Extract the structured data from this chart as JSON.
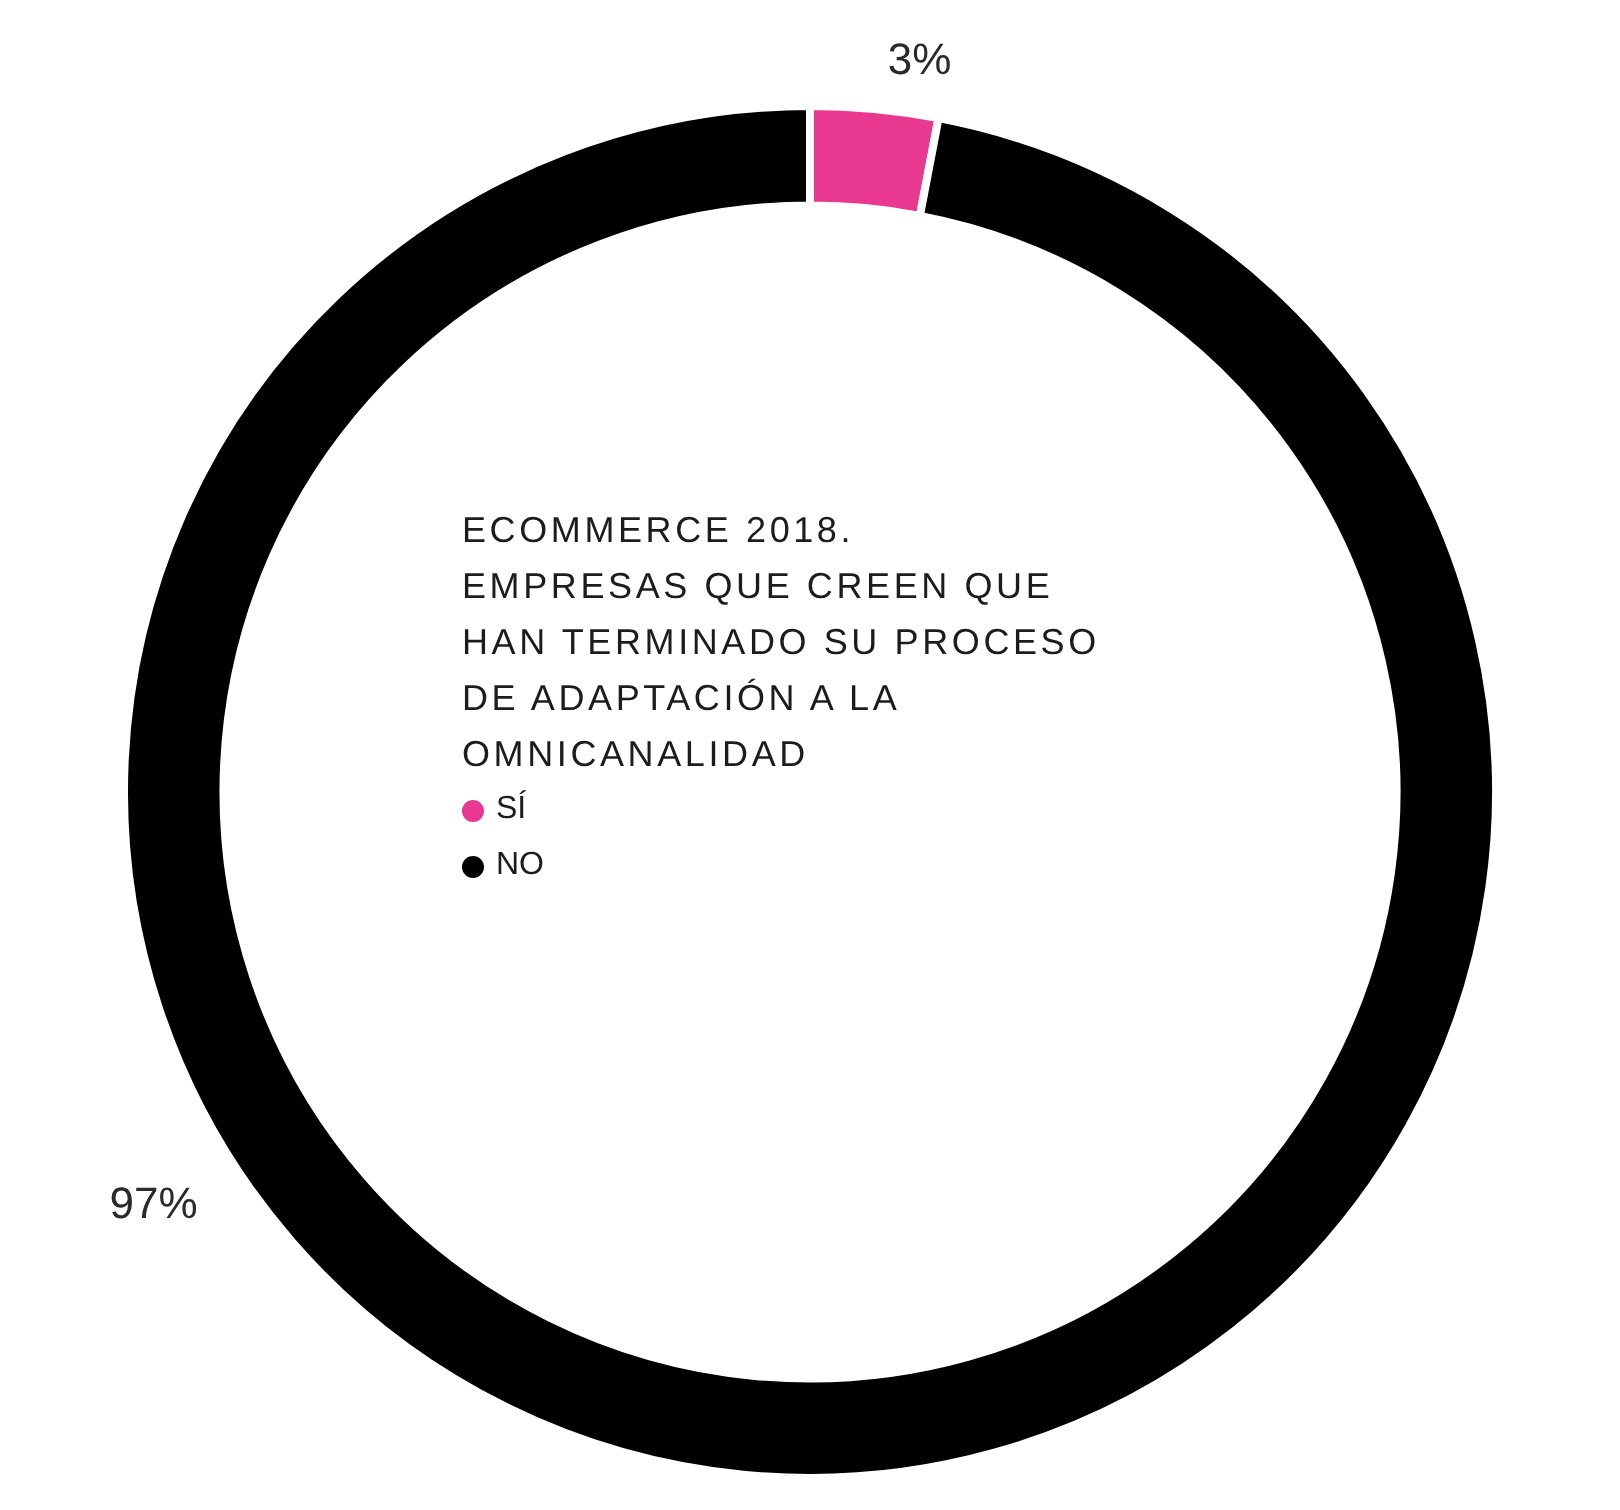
{
  "chart_data": {
    "type": "donut",
    "title": "ECOMMERCE 2018.",
    "subtitle": "EMPRESAS QUE CREEN QUE HAN TERMINADO SU PROCESO DE ADAPTACIÓN A LA OMNICANALIDAD",
    "categories": [
      "SÍ",
      "NO"
    ],
    "values": [
      3,
      97
    ],
    "colors": [
      "#e8388f",
      "#000000"
    ],
    "value_labels": [
      "3%",
      "97%"
    ],
    "legend": "center"
  }
}
